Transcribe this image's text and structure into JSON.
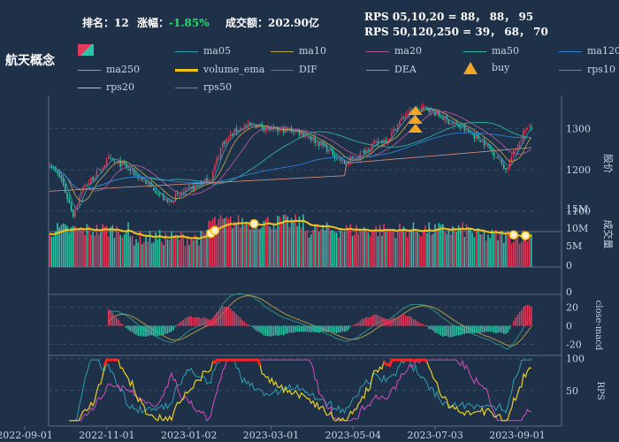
{
  "header": {
    "rank_label": "排名：",
    "rank_value": "12",
    "change_label": "涨幅：",
    "change_value": "-1.85%",
    "turnover_label": "成交额：",
    "turnover_value": "202.90亿",
    "rps_short": "RPS 05,10,20 = 88， 88， 95",
    "rps_long": "RPS 50,120,250 = 39， 68， 70"
  },
  "title": "航天概念",
  "colors": {
    "background": "#1f3049",
    "up": "#e23a5a",
    "down": "#2ec4a6",
    "volume_ema": "#f2c41a",
    "buy": "#f5a623",
    "axis": "#5d7088",
    "grid": "#3a4d66"
  },
  "legend": [
    {
      "name": "kline",
      "label": "",
      "color": "#e23a5a",
      "kind": "candle"
    },
    {
      "name": "ma05",
      "label": "ma05",
      "color": "#2f9fb0",
      "kind": "line"
    },
    {
      "name": "ma10",
      "label": "ma10",
      "color": "#b7a24a",
      "kind": "line"
    },
    {
      "name": "ma20",
      "label": "ma20",
      "color": "#b05a9a",
      "kind": "line"
    },
    {
      "name": "ma50",
      "label": "ma50",
      "color": "#2eb39a",
      "kind": "line"
    },
    {
      "name": "ma120",
      "label": "ma120",
      "color": "#2d7fd0",
      "kind": "line"
    },
    {
      "name": "ma250",
      "label": "ma250",
      "color": "#c98a7a",
      "kind": "line"
    },
    {
      "name": "volume_ema",
      "label": "volume_ema",
      "color": "#f2c41a",
      "kind": "thick"
    },
    {
      "name": "DIF",
      "label": "DIF",
      "color": "#2f8f80",
      "kind": "line"
    },
    {
      "name": "DEA",
      "label": "DEA",
      "color": "#a89a4a",
      "kind": "line"
    },
    {
      "name": "buy",
      "label": "buy",
      "color": "#f5a623",
      "kind": "arrow"
    },
    {
      "name": "rps10",
      "label": "rps10",
      "color": "#2f9fb0",
      "kind": "line"
    },
    {
      "name": "rps20",
      "label": "rps20",
      "color": "#e8d020",
      "kind": "line"
    },
    {
      "name": "rps50",
      "label": "rps50",
      "color": "#d050c0",
      "kind": "line"
    }
  ],
  "chart_data": {
    "type": "candlestick",
    "x_dates": [
      "2022-09-01",
      "2022-11-01",
      "2023-01-02",
      "2023-03-01",
      "2023-05-04",
      "2023-07-03",
      "2023-09-01"
    ],
    "price_panel": {
      "ylabel": "股价",
      "ylim": [
        1050,
        1380
      ],
      "ticks": [
        1100,
        1200,
        1300
      ],
      "close_keyframes": [
        [
          0,
          1215
        ],
        [
          6,
          1175
        ],
        [
          12,
          1090
        ],
        [
          16,
          1150
        ],
        [
          22,
          1180
        ],
        [
          30,
          1225
        ],
        [
          38,
          1210
        ],
        [
          46,
          1180
        ],
        [
          54,
          1150
        ],
        [
          60,
          1120
        ],
        [
          66,
          1140
        ],
        [
          74,
          1160
        ],
        [
          82,
          1180
        ],
        [
          88,
          1265
        ],
        [
          96,
          1300
        ],
        [
          104,
          1310
        ],
        [
          114,
          1295
        ],
        [
          124,
          1295
        ],
        [
          130,
          1285
        ],
        [
          140,
          1255
        ],
        [
          150,
          1215
        ],
        [
          156,
          1230
        ],
        [
          164,
          1260
        ],
        [
          172,
          1275
        ],
        [
          180,
          1330
        ],
        [
          186,
          1345
        ],
        [
          192,
          1350
        ],
        [
          200,
          1325
        ],
        [
          210,
          1300
        ],
        [
          220,
          1270
        ],
        [
          228,
          1230
        ],
        [
          232,
          1200
        ],
        [
          238,
          1260
        ],
        [
          242,
          1300
        ]
      ],
      "buy_signals": [
        {
          "index": 186,
          "count": 3
        }
      ]
    },
    "volume_panel": {
      "ylabel": "成交量",
      "ylim": [
        0,
        16000000
      ],
      "tick_labels": [
        "0",
        "5M",
        "10M",
        "15M"
      ],
      "ema_markers": [
        82,
        84,
        104,
        236,
        242
      ]
    },
    "macd_panel": {
      "ylabel": "close-macd",
      "ylim": [
        -30,
        32
      ],
      "ticks": [
        -20,
        0,
        20
      ]
    },
    "rps_panel": {
      "ylabel": "RPS",
      "ylim": [
        0,
        105
      ],
      "ticks": [
        50,
        100
      ]
    },
    "bar_count": 246
  }
}
